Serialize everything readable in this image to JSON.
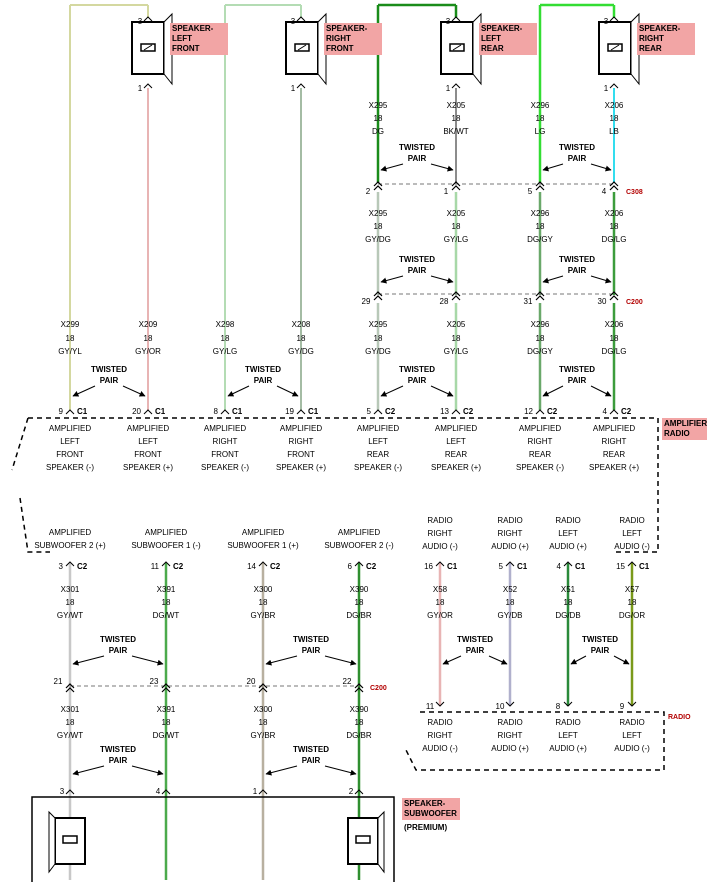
{
  "speakers_top": [
    {
      "label": [
        "SPEAKER-",
        "LEFT",
        "FRONT"
      ],
      "pin_top": "3",
      "pin_bottom": "1"
    },
    {
      "label": [
        "SPEAKER-",
        "RIGHT",
        "FRONT"
      ],
      "pin_top": "3",
      "pin_bottom": "1"
    },
    {
      "label": [
        "SPEAKER-",
        "LEFT",
        "REAR"
      ],
      "pin_top": "3",
      "pin_bottom": "1"
    },
    {
      "label": [
        "SPEAKER-",
        "RIGHT",
        "REAR"
      ],
      "pin_top": "3",
      "pin_bottom": "1"
    }
  ],
  "rear_block": {
    "circuits_1": [
      {
        "id": "X295",
        "gauge": "18",
        "color": "DG",
        "hex": "#1a8c1a"
      },
      {
        "id": "X205",
        "gauge": "18",
        "color": "BK/WT",
        "hex": "#8c8c8c"
      },
      {
        "id": "X296",
        "gauge": "18",
        "color": "LG",
        "hex": "#33dd33"
      },
      {
        "id": "X206",
        "gauge": "18",
        "color": "LB",
        "hex": "#33ddee"
      }
    ],
    "connector_1": {
      "name": "C308",
      "pins": [
        "2",
        "1",
        "5",
        "4"
      ]
    },
    "circuits_2": [
      {
        "id": "X295",
        "gauge": "18",
        "color": "GY/DG",
        "hex": "#b8c8b8"
      },
      {
        "id": "X205",
        "gauge": "18",
        "color": "GY/LG",
        "hex": "#a8d8a8"
      },
      {
        "id": "X296",
        "gauge": "18",
        "color": "DG/GY",
        "hex": "#6aa86a"
      },
      {
        "id": "X206",
        "gauge": "18",
        "color": "DG/LG",
        "hex": "#3c9c3c"
      }
    ],
    "connector_2": {
      "name": "C200",
      "pins": [
        "29",
        "28",
        "31",
        "30"
      ]
    }
  },
  "front_circuits": [
    {
      "id": "X299",
      "gauge": "18",
      "color": "GY/YL",
      "hex": "#d4d8a0"
    },
    {
      "id": "X209",
      "gauge": "18",
      "color": "GY/OR",
      "hex": "#e8b4b4"
    },
    {
      "id": "X298",
      "gauge": "18",
      "color": "GY/LG",
      "hex": "#b4dcb4"
    },
    {
      "id": "X208",
      "gauge": "18",
      "color": "GY/DG",
      "hex": "#a4bca4"
    },
    {
      "id": "X295",
      "gauge": "18",
      "color": "GY/DG",
      "hex": "#b8c8b8"
    },
    {
      "id": "X205",
      "gauge": "18",
      "color": "GY/LG",
      "hex": "#a8d8a8"
    },
    {
      "id": "X296",
      "gauge": "18",
      "color": "DG/GY",
      "hex": "#6aa86a"
    },
    {
      "id": "X206",
      "gauge": "18",
      "color": "DG/LG",
      "hex": "#3c9c3c"
    }
  ],
  "twisted_pair": [
    "TWISTED",
    "PAIR"
  ],
  "amplifier_pins": [
    {
      "pin": "9",
      "conn": "C1"
    },
    {
      "pin": "20",
      "conn": "C1"
    },
    {
      "pin": "8",
      "conn": "C1"
    },
    {
      "pin": "19",
      "conn": "C1"
    },
    {
      "pin": "5",
      "conn": "C2"
    },
    {
      "pin": "13",
      "conn": "C2"
    },
    {
      "pin": "12",
      "conn": "C2"
    },
    {
      "pin": "4",
      "conn": "C2"
    }
  ],
  "amplifier_labels": [
    [
      "AMPLIFIED",
      "LEFT",
      "FRONT",
      "SPEAKER (-)"
    ],
    [
      "AMPLIFIED",
      "LEFT",
      "FRONT",
      "SPEAKER (+)"
    ],
    [
      "AMPLIFIED",
      "RIGHT",
      "FRONT",
      "SPEAKER (-)"
    ],
    [
      "AMPLIFIED",
      "RIGHT",
      "FRONT",
      "SPEAKER (+)"
    ],
    [
      "AMPLIFIED",
      "LEFT",
      "REAR",
      "SPEAKER (-)"
    ],
    [
      "AMPLIFIED",
      "LEFT",
      "REAR",
      "SPEAKER (+)"
    ],
    [
      "AMPLIFIED",
      "RIGHT",
      "REAR",
      "SPEAKER (-)"
    ],
    [
      "AMPLIFIED",
      "RIGHT",
      "REAR",
      "SPEAKER (+)"
    ]
  ],
  "amplifier_radio_label": [
    "AMPLIFIER-",
    "RADIO"
  ],
  "lower_labels": [
    [
      "AMPLIFIED",
      "SUBWOOFER 2 (+)"
    ],
    [
      "AMPLIFIED",
      "SUBWOOFER 1 (-)"
    ],
    [
      "AMPLIFIED",
      "SUBWOOFER 1 (+)"
    ],
    [
      "AMPLIFIED",
      "SUBWOOFER 2 (-)"
    ],
    [
      "RADIO",
      "RIGHT",
      "AUDIO (-)"
    ],
    [
      "RADIO",
      "RIGHT",
      "AUDIO (+)"
    ],
    [
      "RADIO",
      "LEFT",
      "AUDIO (+)"
    ],
    [
      "RADIO",
      "LEFT",
      "AUDIO (-)"
    ]
  ],
  "lower_pins": [
    {
      "pin": "3",
      "conn": "C2"
    },
    {
      "pin": "11",
      "conn": "C2"
    },
    {
      "pin": "14",
      "conn": "C2"
    },
    {
      "pin": "6",
      "conn": "C2"
    },
    {
      "pin": "16",
      "conn": "C1"
    },
    {
      "pin": "5",
      "conn": "C1"
    },
    {
      "pin": "4",
      "conn": "C1"
    },
    {
      "pin": "15",
      "conn": "C1"
    }
  ],
  "lower_circuits": [
    {
      "id": "X301",
      "gauge": "18",
      "color": "GY/WT",
      "hex": "#c8c8c8"
    },
    {
      "id": "X391",
      "gauge": "18",
      "color": "DG/WT",
      "hex": "#4caa4c"
    },
    {
      "id": "X300",
      "gauge": "18",
      "color": "GY/BR",
      "hex": "#b8b0a0"
    },
    {
      "id": "X390",
      "gauge": "18",
      "color": "DG/BR",
      "hex": "#2f8f2f"
    },
    {
      "id": "X58",
      "gauge": "18",
      "color": "GY/OR",
      "hex": "#e8b4b4"
    },
    {
      "id": "X52",
      "gauge": "18",
      "color": "GY/DB",
      "hex": "#b0b0cc"
    },
    {
      "id": "X51",
      "gauge": "18",
      "color": "DG/DB",
      "hex": "#2a8a3a"
    },
    {
      "id": "X57",
      "gauge": "18",
      "color": "DG/OR",
      "hex": "#7a9a1a"
    }
  ],
  "sub_connector": {
    "name": "C200",
    "pins": [
      "21",
      "23",
      "20",
      "22"
    ]
  },
  "sub_circuits_2": [
    {
      "id": "X301",
      "gauge": "18",
      "color": "GY/WT"
    },
    {
      "id": "X391",
      "gauge": "18",
      "color": "DG/WT"
    },
    {
      "id": "X300",
      "gauge": "18",
      "color": "GY/BR"
    },
    {
      "id": "X390",
      "gauge": "18",
      "color": "DG/BR"
    }
  ],
  "radio_pins": [
    "11",
    "10",
    "8",
    "9"
  ],
  "radio_labels": [
    [
      "RADIO",
      "RIGHT",
      "AUDIO (-)"
    ],
    [
      "RADIO",
      "RIGHT",
      "AUDIO (+)"
    ],
    [
      "RADIO",
      "LEFT",
      "AUDIO (+)"
    ],
    [
      "RADIO",
      "LEFT",
      "AUDIO (-)"
    ]
  ],
  "radio_label": "RADIO",
  "subwoofer_pins": [
    "3",
    "4",
    "1",
    "2"
  ],
  "subwoofer_label": [
    "SPEAKER-",
    "SUBWOOFER"
  ],
  "subwoofer_note": "(PREMIUM)"
}
